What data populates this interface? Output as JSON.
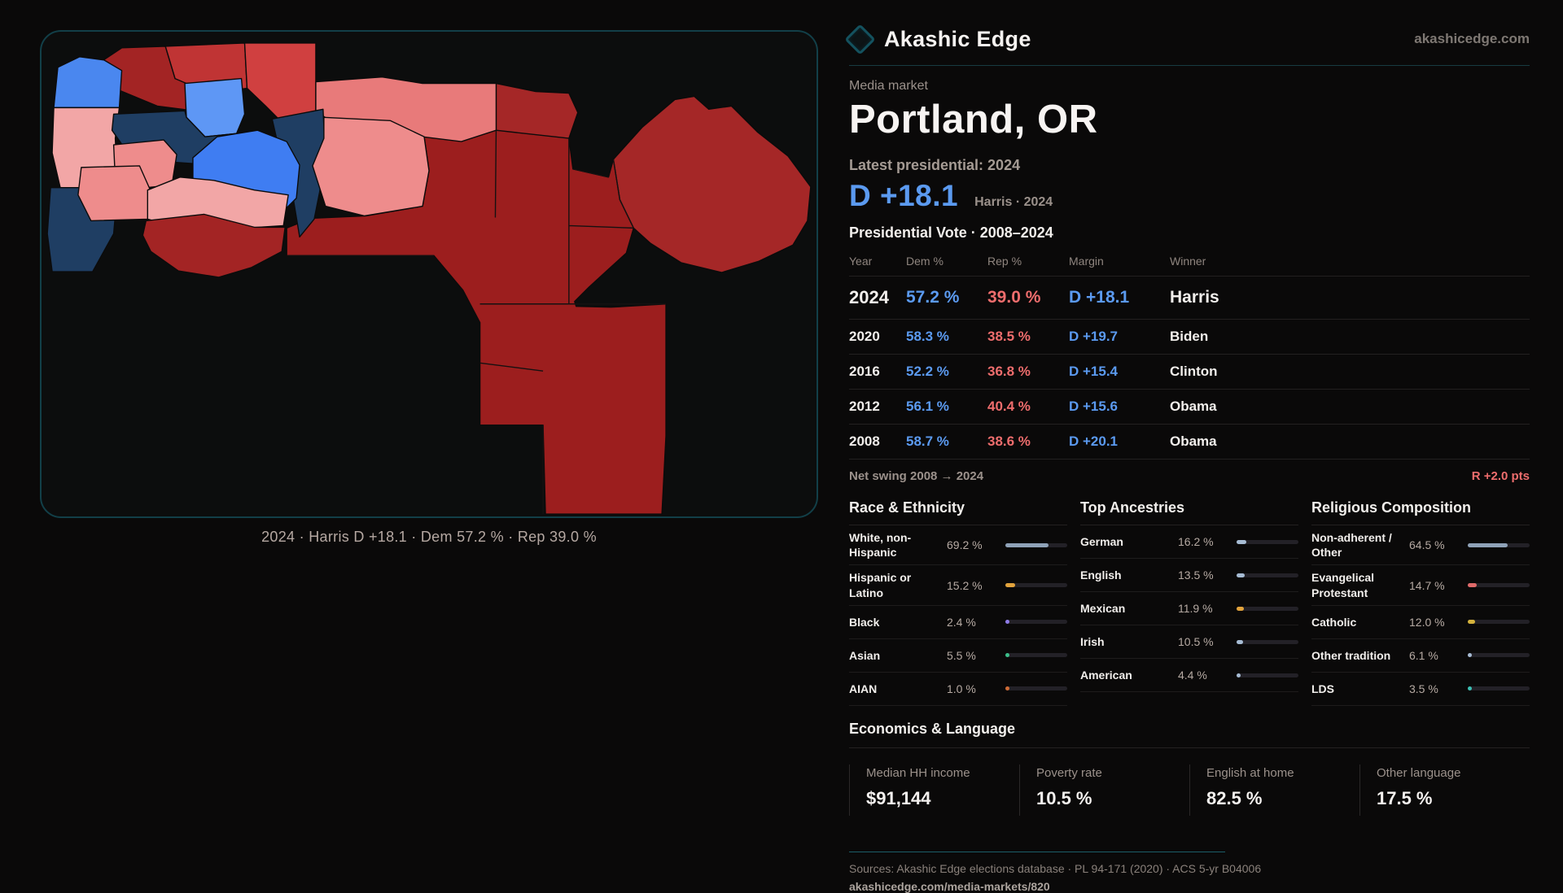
{
  "brand": {
    "name": "Akashic Edge",
    "site": "akashicedge.com"
  },
  "page": {
    "kicker": "Media market",
    "title": "Portland, OR",
    "latest_label": "Latest presidential: 2024",
    "headline_margin": "D +18.1",
    "headline_sub": "Harris · 2024"
  },
  "map": {
    "caption": "2024 · Harris D +18.1 · Dem 57.2 % · Rep 39.0 %",
    "palette": {
      "strong_dem": "#1f3e63",
      "dem": "#3f7df2",
      "dem_light": "#5e97f5",
      "dem_coast": "#4a87ef",
      "lean_rep_light": "#f2a6a6",
      "lean_rep": "#ee8c8c",
      "rep_salmon": "#e87a7a",
      "rep_bright": "#d04040",
      "rep_mid": "#c03434",
      "rep_strong": "#a32424",
      "rep_dark": "#9c1e1e",
      "rep_dark2": "#a52727"
    }
  },
  "chart_data": {
    "type": "table",
    "title": "Presidential Vote · 2008–2024",
    "columns": [
      "Year",
      "Dem %",
      "Rep %",
      "Margin",
      "Winner"
    ],
    "rows": [
      [
        "2024",
        57.2,
        39.0,
        "D +18.1",
        "Harris"
      ],
      [
        "2020",
        58.3,
        38.5,
        "D +19.7",
        "Biden"
      ],
      [
        "2016",
        52.2,
        36.8,
        "D +15.4",
        "Clinton"
      ],
      [
        "2012",
        56.1,
        40.4,
        "D +15.6",
        "Obama"
      ],
      [
        "2008",
        58.7,
        38.6,
        "D +20.1",
        "Obama"
      ]
    ]
  },
  "table": {
    "title": "Presidential Vote · 2008–2024",
    "columns": [
      "Year",
      "Dem %",
      "Rep %",
      "Margin",
      "Winner"
    ],
    "rows": [
      {
        "year": "2024",
        "dem": "57.2 %",
        "rep": "39.0 %",
        "margin": "D +18.1",
        "winner": "Harris"
      },
      {
        "year": "2020",
        "dem": "58.3 %",
        "rep": "38.5 %",
        "margin": "D +19.7",
        "winner": "Biden"
      },
      {
        "year": "2016",
        "dem": "52.2 %",
        "rep": "36.8 %",
        "margin": "D +15.4",
        "winner": "Clinton"
      },
      {
        "year": "2012",
        "dem": "56.1 %",
        "rep": "40.4 %",
        "margin": "D +15.6",
        "winner": "Obama"
      },
      {
        "year": "2008",
        "dem": "58.7 %",
        "rep": "38.6 %",
        "margin": "D +20.1",
        "winner": "Obama"
      }
    ],
    "net_swing_label": "Net swing 2008 → 2024",
    "net_swing_value": "R +2.0 pts"
  },
  "sections": {
    "race": {
      "title": "Race & Ethnicity",
      "rows": [
        {
          "label": "White, non-Hispanic",
          "value": "69.2 %",
          "pct": 69.2,
          "color": "#8fa2b8"
        },
        {
          "label": "Hispanic or Latino",
          "value": "15.2 %",
          "pct": 15.2,
          "color": "#e2a33c"
        },
        {
          "label": "Black",
          "value": "2.4 %",
          "pct": 2.4,
          "color": "#8f7ce8"
        },
        {
          "label": "Asian",
          "value": "5.5 %",
          "pct": 5.5,
          "color": "#3cc08b"
        },
        {
          "label": "AIAN",
          "value": "1.0 %",
          "pct": 1.0,
          "color": "#cf6b35"
        }
      ]
    },
    "ancestry": {
      "title": "Top Ancestries",
      "rows": [
        {
          "label": "German",
          "value": "16.2 %",
          "pct": 16.2,
          "color": "#a7bcd4"
        },
        {
          "label": "English",
          "value": "13.5 %",
          "pct": 13.5,
          "color": "#a7bcd4"
        },
        {
          "label": "Mexican",
          "value": "11.9 %",
          "pct": 11.9,
          "color": "#e2a33c"
        },
        {
          "label": "Irish",
          "value": "10.5 %",
          "pct": 10.5,
          "color": "#a7bcd4"
        },
        {
          "label": "American",
          "value": "4.4 %",
          "pct": 4.4,
          "color": "#a7bcd4"
        }
      ]
    },
    "religion": {
      "title": "Religious Composition",
      "rows": [
        {
          "label": "Non-adherent / Other",
          "value": "64.5 %",
          "pct": 64.5,
          "color": "#8fa2b8"
        },
        {
          "label": "Evangelical Protestant",
          "value": "14.7 %",
          "pct": 14.7,
          "color": "#e06a6a"
        },
        {
          "label": "Catholic",
          "value": "12.0 %",
          "pct": 12.0,
          "color": "#d4b23c"
        },
        {
          "label": "Other tradition",
          "value": "6.1 %",
          "pct": 6.1,
          "color": "#a7bcd4"
        },
        {
          "label": "LDS",
          "value": "3.5 %",
          "pct": 3.5,
          "color": "#3cc0b4"
        }
      ]
    }
  },
  "economics": {
    "title": "Economics & Language",
    "stats": [
      {
        "label": "Median HH income",
        "value": "$91,144"
      },
      {
        "label": "Poverty rate",
        "value": "10.5 %"
      },
      {
        "label": "English at home",
        "value": "82.5 %"
      },
      {
        "label": "Other language",
        "value": "17.5 %"
      }
    ]
  },
  "footer": {
    "sources": "Sources: Akashic Edge elections database · PL 94-171 (2020) · ACS 5-yr B04006",
    "permalink": "akashicedge.com/media-markets/820"
  }
}
